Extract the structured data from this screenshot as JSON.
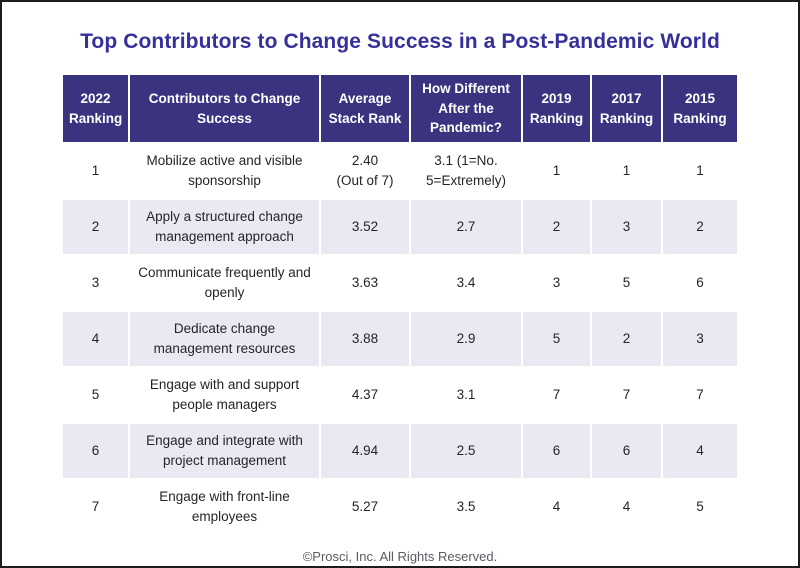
{
  "page": {
    "title": "Top Contributors to Change Success in a Post-Pandemic World",
    "footer": "©Prosci, Inc. All Rights Reserved."
  },
  "colors": {
    "title_text": "#36309a",
    "header_bg": "#3a3480",
    "header_text": "#ffffff",
    "row_alt_bg": "#e9e9f3",
    "body_text": "#252525",
    "footer_text": "#5b5b63",
    "frame_border": "#1c1c1c"
  },
  "chart_data": {
    "type": "table",
    "title": "Top Contributors to Change Success in a Post-Pandemic World",
    "columns": [
      "2022\nRanking",
      "Contributors to Change\nSuccess",
      "Average\nStack Rank",
      "How Different\nAfter the\nPandemic?",
      "2019\nRanking",
      "2017\nRanking",
      "2015\nRanking"
    ],
    "rows": [
      [
        "1",
        "Mobilize active and visible\nsponsorship",
        "2.40\n(Out of 7)",
        "3.1 (1=No.\n5=Extremely)",
        "1",
        "1",
        "1"
      ],
      [
        "2",
        "Apply a structured change\nmanagement approach",
        "3.52",
        "2.7",
        "2",
        "3",
        "2"
      ],
      [
        "3",
        "Communicate frequently and\nopenly",
        "3.63",
        "3.4",
        "3",
        "5",
        "6"
      ],
      [
        "4",
        "Dedicate change\nmanagement resources",
        "3.88",
        "2.9",
        "5",
        "2",
        "3"
      ],
      [
        "5",
        "Engage with and support\npeople managers",
        "4.37",
        "3.1",
        "7",
        "7",
        "7"
      ],
      [
        "6",
        "Engage and integrate with\nproject management",
        "4.94",
        "2.5",
        "6",
        "6",
        "4"
      ],
      [
        "7",
        "Engage with front-line\nemployees",
        "5.27",
        "3.5",
        "4",
        "4",
        "5"
      ]
    ],
    "layout": {
      "grid": "white 2px cell borders",
      "row_striping": "odd rows white, even rows lavender",
      "header_position": "top"
    }
  }
}
